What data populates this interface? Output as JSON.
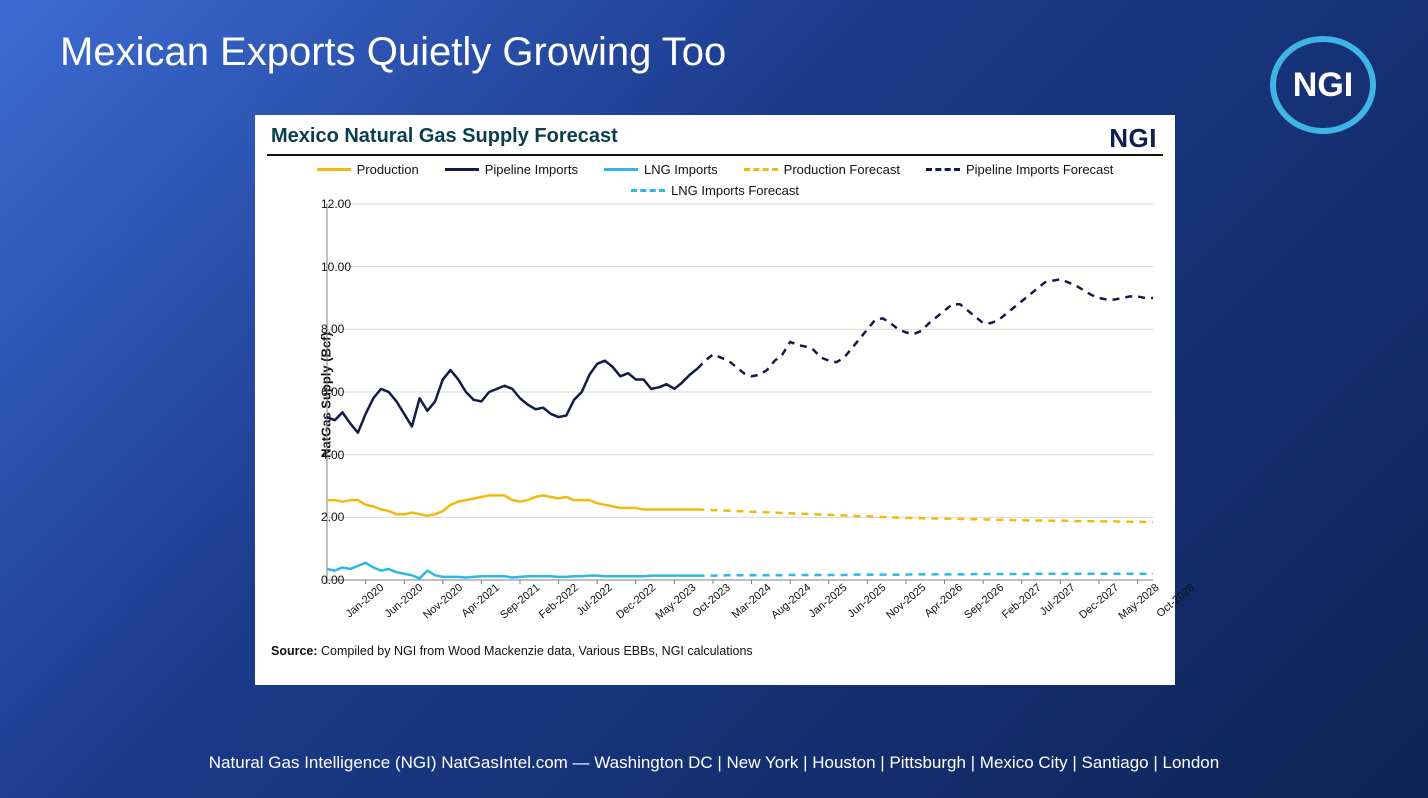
{
  "slide": {
    "title": "Mexican Exports Quietly Growing Too",
    "footer": "Natural Gas Intelligence (NGI) NatGasIntel.com — Washington DC | New York | Houston | Pittsburgh | Mexico City | Santiago | London",
    "logo_text": "NGI",
    "logo_ring_color": "#3fb4e6",
    "logo_text_color": "#ffffff",
    "background_gradient": [
      "#3d6cd4",
      "#1b3a8a",
      "#0e2456"
    ]
  },
  "chart": {
    "title": "Mexico Natural Gas Supply Forecast",
    "title_color": "#0b3e4d",
    "title_fontsize": 20,
    "brand_mark": "NGI",
    "brand_mark_color": "#0f1f4f",
    "background_color": "#ffffff",
    "source_label": "Source:",
    "source_text": " Compiled by NGI from Wood Mackenzie data, Various EBBs, NGI calculations",
    "type": "line",
    "ylabel": "NatGas Supply (Bcf)",
    "ylabel_fontsize": 13,
    "ylim": [
      0,
      12
    ],
    "ytick_step": 2,
    "ytick_format": "fixed2",
    "grid_color": "#d9d9d9",
    "axis_color": "#808080",
    "forecast_start_index": 48,
    "x_labels": [
      "Jan-2020",
      "Jun-2020",
      "Nov-2020",
      "Apr-2021",
      "Sep-2021",
      "Feb-2022",
      "Jul-2022",
      "Dec-2022",
      "May-2023",
      "Oct-2023",
      "Mar-2024",
      "Aug-2024",
      "Jan-2025",
      "Jun-2025",
      "Nov-2025",
      "Apr-2026",
      "Sep-2026",
      "Feb-2027",
      "Jul-2027",
      "Dec-2027",
      "May-2028",
      "Oct-2028"
    ],
    "x_label_every": 5,
    "n_points": 108,
    "legend": [
      {
        "label": "Production",
        "color": "#f2b90f",
        "dash": false
      },
      {
        "label": "Pipeline Imports",
        "color": "#121a4a",
        "dash": false
      },
      {
        "label": "LNG Imports",
        "color": "#2fb6e8",
        "dash": false
      },
      {
        "label": "Production Forecast",
        "color": "#f2b90f",
        "dash": true
      },
      {
        "label": "Pipeline Imports Forecast",
        "color": "#121a4a",
        "dash": true
      },
      {
        "label": "LNG Imports Forecast",
        "color": "#2fb6e8",
        "dash": true
      }
    ],
    "series": {
      "production": {
        "color": "#f2b90f",
        "width": 2.5,
        "values": [
          2.55,
          2.55,
          2.5,
          2.55,
          2.55,
          2.4,
          2.35,
          2.25,
          2.2,
          2.1,
          2.1,
          2.15,
          2.1,
          2.05,
          2.1,
          2.2,
          2.4,
          2.5,
          2.55,
          2.6,
          2.65,
          2.7,
          2.7,
          2.7,
          2.55,
          2.5,
          2.55,
          2.65,
          2.7,
          2.65,
          2.6,
          2.65,
          2.55,
          2.55,
          2.55,
          2.45,
          2.4,
          2.35,
          2.3,
          2.3,
          2.3,
          2.25,
          2.25,
          2.25,
          2.25,
          2.25,
          2.25,
          2.25,
          2.25,
          2.24,
          2.23,
          2.22,
          2.21,
          2.2,
          2.19,
          2.18,
          2.17,
          2.16,
          2.15,
          2.14,
          2.13,
          2.12,
          2.11,
          2.1,
          2.09,
          2.08,
          2.07,
          2.06,
          2.05,
          2.04,
          2.03,
          2.02,
          2.01,
          2.0,
          1.99,
          1.98,
          1.98,
          1.97,
          1.97,
          1.96,
          1.96,
          1.95,
          1.95,
          1.94,
          1.94,
          1.93,
          1.93,
          1.92,
          1.92,
          1.91,
          1.91,
          1.9,
          1.9,
          1.9,
          1.89,
          1.89,
          1.89,
          1.88,
          1.88,
          1.88,
          1.87,
          1.87,
          1.87,
          1.86,
          1.86,
          1.86,
          1.85,
          1.85
        ]
      },
      "pipeline": {
        "color": "#121a4a",
        "width": 2.5,
        "values": [
          5.2,
          5.1,
          5.35,
          5.0,
          4.7,
          5.3,
          5.8,
          6.1,
          6.0,
          5.7,
          5.3,
          4.9,
          5.8,
          5.4,
          5.7,
          6.4,
          6.7,
          6.4,
          6.0,
          5.75,
          5.7,
          6.0,
          6.1,
          6.2,
          6.1,
          5.8,
          5.6,
          5.45,
          5.5,
          5.3,
          5.2,
          5.25,
          5.75,
          6.0,
          6.55,
          6.9,
          7.0,
          6.8,
          6.5,
          6.6,
          6.4,
          6.4,
          6.1,
          6.15,
          6.25,
          6.1,
          6.3,
          6.55,
          6.75,
          7.0,
          7.2,
          7.1,
          7.0,
          6.8,
          6.6,
          6.5,
          6.55,
          6.7,
          7.0,
          7.2,
          7.6,
          7.5,
          7.45,
          7.35,
          7.1,
          7.0,
          6.95,
          7.1,
          7.4,
          7.7,
          8.0,
          8.3,
          8.35,
          8.2,
          8.0,
          7.9,
          7.85,
          7.95,
          8.2,
          8.4,
          8.6,
          8.8,
          8.8,
          8.6,
          8.4,
          8.2,
          8.2,
          8.3,
          8.5,
          8.7,
          8.9,
          9.1,
          9.3,
          9.5,
          9.55,
          9.6,
          9.5,
          9.4,
          9.25,
          9.1,
          9.0,
          8.95,
          8.95,
          9.0,
          9.05,
          9.05,
          9.0,
          9.0
        ]
      },
      "lng": {
        "color": "#2fb6e8",
        "width": 2.5,
        "values": [
          0.35,
          0.3,
          0.4,
          0.35,
          0.45,
          0.55,
          0.4,
          0.3,
          0.35,
          0.25,
          0.2,
          0.15,
          0.05,
          0.3,
          0.15,
          0.1,
          0.1,
          0.1,
          0.08,
          0.1,
          0.12,
          0.12,
          0.12,
          0.12,
          0.08,
          0.1,
          0.12,
          0.12,
          0.12,
          0.12,
          0.1,
          0.1,
          0.12,
          0.12,
          0.14,
          0.14,
          0.12,
          0.12,
          0.12,
          0.12,
          0.12,
          0.12,
          0.14,
          0.14,
          0.14,
          0.14,
          0.14,
          0.14,
          0.14,
          0.14,
          0.14,
          0.14,
          0.15,
          0.15,
          0.15,
          0.15,
          0.15,
          0.15,
          0.15,
          0.15,
          0.16,
          0.16,
          0.16,
          0.16,
          0.16,
          0.16,
          0.16,
          0.16,
          0.17,
          0.17,
          0.17,
          0.17,
          0.17,
          0.17,
          0.17,
          0.17,
          0.18,
          0.18,
          0.18,
          0.18,
          0.18,
          0.18,
          0.18,
          0.18,
          0.19,
          0.19,
          0.19,
          0.19,
          0.19,
          0.19,
          0.19,
          0.19,
          0.2,
          0.2,
          0.2,
          0.2,
          0.2,
          0.2,
          0.2,
          0.2,
          0.2,
          0.2,
          0.2,
          0.2,
          0.2,
          0.2,
          0.2,
          0.2
        ]
      }
    }
  }
}
